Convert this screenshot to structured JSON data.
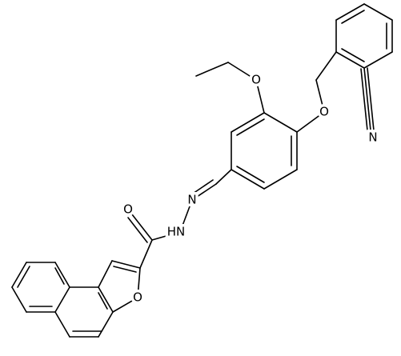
{
  "atoms": {
    "ethoxy_oxygen": "O",
    "ether_oxygen": "O",
    "nitrile_nitrogen": "N",
    "imine_nitrogen": "N",
    "amide_nitrogen": "HN",
    "carbonyl_oxygen": "O",
    "furan_oxygen": "O"
  }
}
